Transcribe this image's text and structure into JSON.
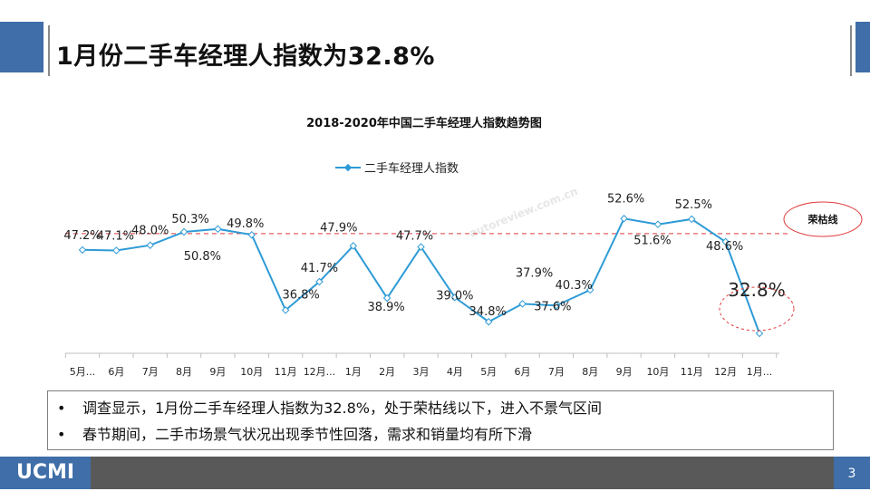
{
  "slide": {
    "title": "1月份二手车经理人指数为32.8%",
    "footer_logo": "UCMI",
    "page_number": "3"
  },
  "chart_data": {
    "type": "line",
    "title": "2018-2020年中国二手车经理人指数趋势图",
    "categories": [
      "5月...",
      "6月",
      "7月",
      "8月",
      "9月",
      "10月",
      "11月",
      "12月...",
      "1月",
      "2月",
      "3月",
      "4月",
      "5月",
      "6月",
      "7月",
      "8月",
      "9月",
      "10月",
      "11月",
      "12月",
      "1月..."
    ],
    "series": [
      {
        "name": "二手车经理人指数",
        "color": "#2e9bd6",
        "values": [
          47.2,
          47.1,
          48.0,
          50.3,
          50.8,
          49.8,
          36.8,
          41.7,
          47.9,
          38.9,
          47.7,
          39.0,
          34.8,
          37.9,
          37.6,
          40.3,
          52.6,
          51.6,
          52.5,
          48.6,
          32.8
        ]
      }
    ],
    "data_labels": [
      "47.2%",
      "47.1%",
      "48.0%",
      "50.3%",
      "50.8%",
      "49.8%",
      "36.8%",
      "41.7%",
      "47.9%",
      "38.9%",
      "47.7%",
      "39.0%",
      "34.8%",
      "37.9%",
      "37.6%",
      "40.3%",
      "52.6%",
      "51.6%",
      "52.5%",
      "48.6%",
      "32.8%"
    ],
    "threshold": {
      "label": "荣枯线",
      "value": 50,
      "color": "#e03c3c"
    },
    "legend_position": "top",
    "grid": false
  },
  "notes": [
    "调查显示，1月份二手车经理人指数为32.8%，处于荣枯线以下，进入不景气区间",
    "春节期间，二手市场景气状况出现季节性回落，需求和销量均有所下滑"
  ],
  "watermark": {
    "site": "autoreview.com.cn"
  }
}
